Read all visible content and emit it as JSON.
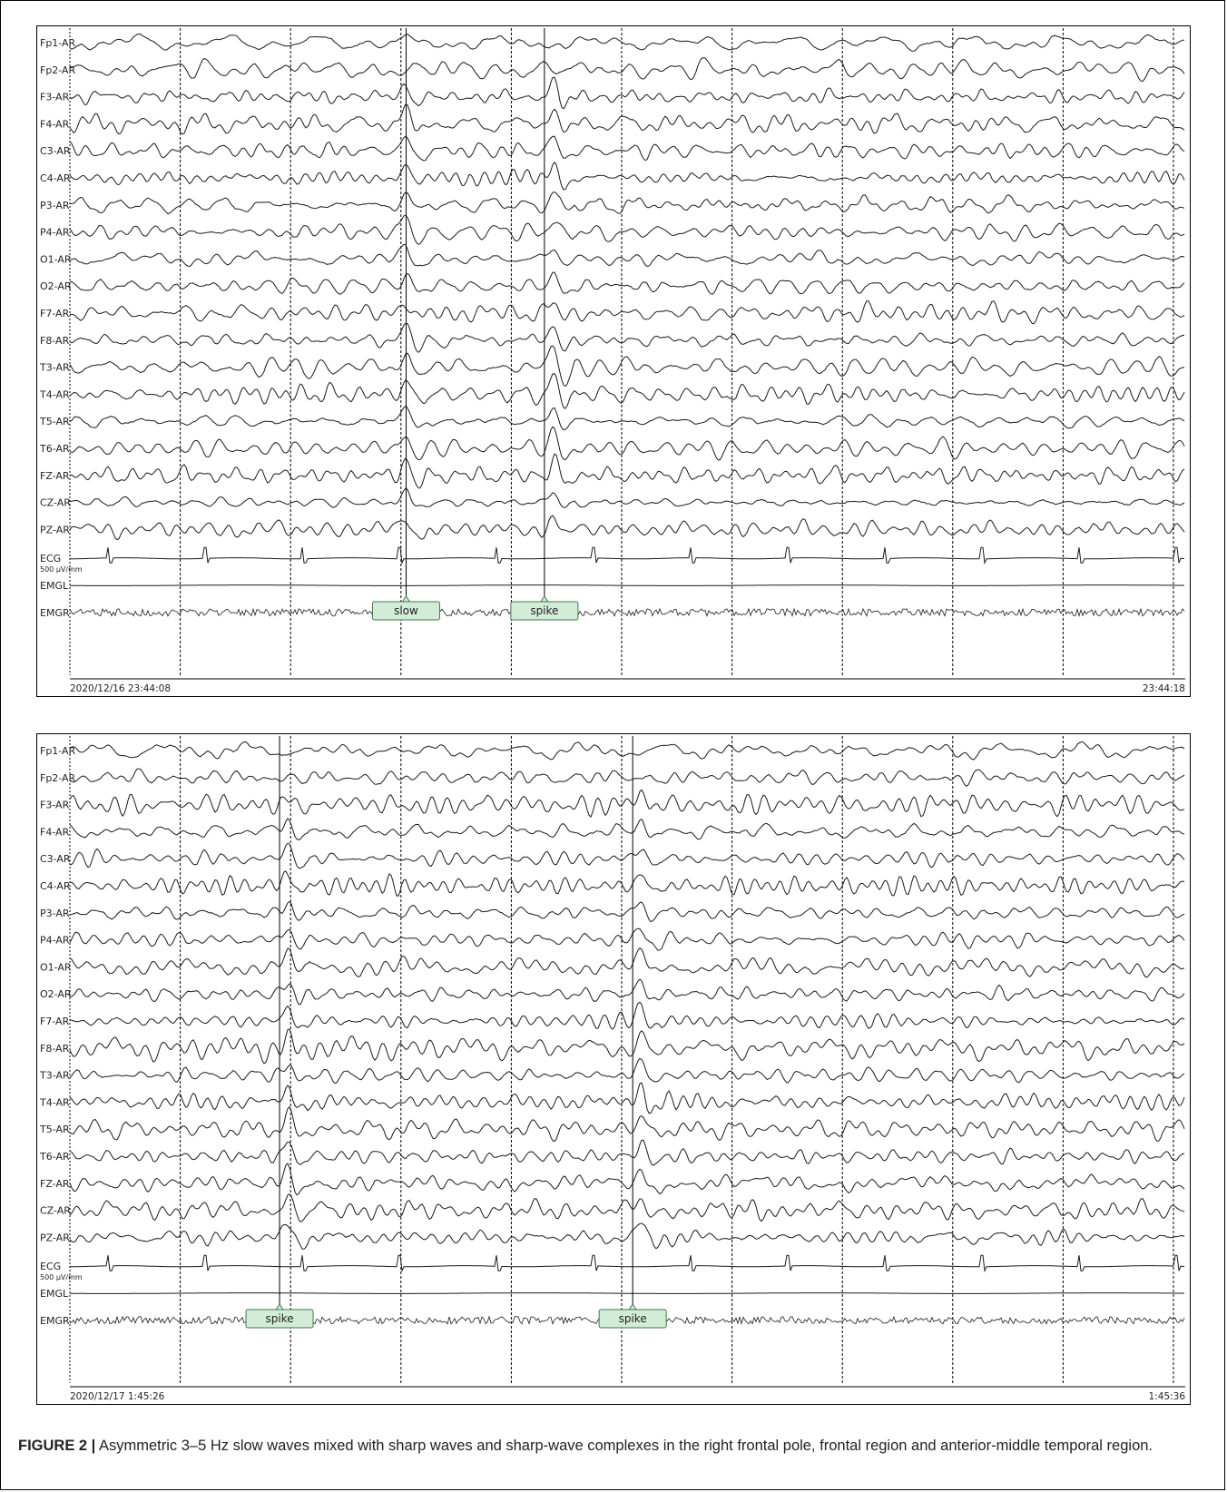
{
  "panels": [
    {
      "channels": [
        "Fp1-AR",
        "Fp2-AR",
        "F3-AR",
        "F4-AR",
        "C3-AR",
        "C4-AR",
        "P3-AR",
        "P4-AR",
        "O1-AR",
        "O2-AR",
        "F7-AR",
        "F8-AR",
        "T3-AR",
        "T4-AR",
        "T5-AR",
        "T6-AR",
        "FZ-AR",
        "CZ-AR",
        "PZ-AR",
        "ECG",
        "EMGL",
        "EMGR"
      ],
      "ecg_scale": "500 µV/mm",
      "start_time": "2020/12/16 23:44:08",
      "end_time": "23:44:18",
      "events": [
        {
          "label": "slow",
          "time_s": 2.8
        },
        {
          "label": "spike",
          "time_s": 4.3
        }
      ]
    },
    {
      "channels": [
        "Fp1-AR",
        "Fp2-AR",
        "F3-AR",
        "F4-AR",
        "C3-AR",
        "C4-AR",
        "P3-AR",
        "P4-AR",
        "O1-AR",
        "O2-AR",
        "F7-AR",
        "F8-AR",
        "T3-AR",
        "T4-AR",
        "T5-AR",
        "T6-AR",
        "FZ-AR",
        "CZ-AR",
        "PZ-AR",
        "ECG",
        "EMGL",
        "EMGR"
      ],
      "ecg_scale": "500 µV/mm",
      "start_time": "2020/12/17 1:45:26",
      "end_time": "1:45:36",
      "events": [
        {
          "label": "spike",
          "time_s": 1.9
        },
        {
          "label": "spike",
          "time_s": 5.1
        }
      ]
    }
  ],
  "caption": {
    "label": "FIGURE 2 |",
    "text": " Asymmetric 3–5 Hz slow waves mixed with sharp waves and sharp-wave complexes in the right frontal pole, frontal region and anterior-middle temporal region."
  },
  "colors": {
    "trace": "#1a1a1a",
    "event_fill": "#d3ecd7",
    "event_border": "#3f7a4a"
  }
}
